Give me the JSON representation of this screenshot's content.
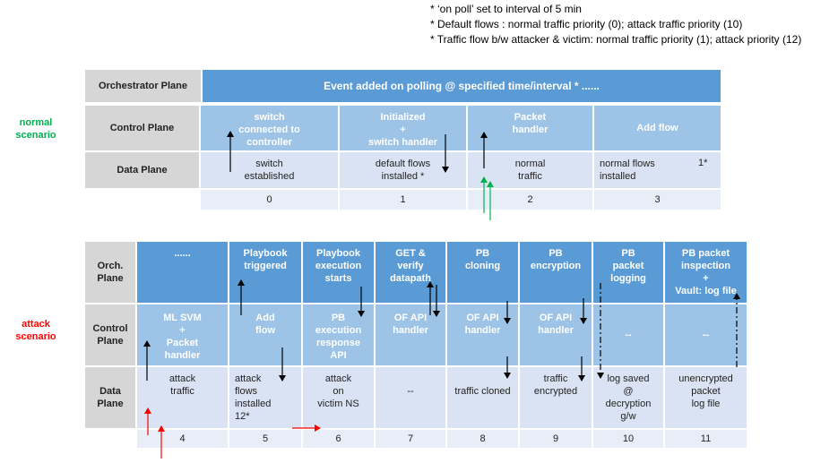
{
  "notes": [
    "* ‘on poll’ set to interval of 5 min",
    "* Default flows : normal traffic priority (0); attack traffic priority (10)",
    "* Traffic flow b/w attacker & victim: normal traffic priority (1); attack priority (12)"
  ],
  "normal": {
    "scenario_label": "normal\nscenario",
    "orchestrator_label": "Orchestrator\nPlane",
    "orchestrator_event": "Event added on polling @ specified time/interval *      ......",
    "control_label": "Control\nPlane",
    "data_label": "Data\nPlane",
    "control": [
      "switch\nconnected to\ncontroller",
      "Initialized\n+\nswitch handler",
      "Packet\nhandler",
      "Add flow"
    ],
    "data": [
      "switch\nestablished",
      "default flows\ninstalled *",
      "normal\ntraffic",
      "normal flows\ninstalled"
    ],
    "data_mark": "1*",
    "steps": [
      "0",
      "1",
      "2",
      "3"
    ]
  },
  "attack": {
    "scenario_label": "attack\nscenario",
    "orch_label": "Orch.\nPlane",
    "control_label": "Control\nPlane",
    "data_label": "Data\nPlane",
    "orch": [
      "......",
      "Playbook\ntriggered",
      "Playbook\nexecution\nstarts",
      "GET &\nverify\ndatapath",
      "PB\ncloning",
      "PB\nencryption",
      "PB\npacket\nlogging",
      "PB packet\ninspection\n+\nVault: log file"
    ],
    "control": [
      "ML SVM\n+\nPacket\nhandler",
      "Add\nflow",
      "PB\nexecution\nresponse\nAPI",
      "OF API\nhandler",
      "OF API\nhandler",
      "OF API\nhandler",
      "--",
      "--"
    ],
    "data": [
      "attack\ntraffic",
      "attack\nflows\ninstalled\n12*",
      "attack\non\nvictim NS",
      "--",
      "traffic cloned",
      "traffic\nencrypted",
      "log saved\n@\ndecryption\ng/w",
      "unencrypted\npacket\nlog file"
    ],
    "steps": [
      "4",
      "5",
      "6",
      "7",
      "8",
      "9",
      "10",
      "11"
    ]
  },
  "colors": {
    "header_gray": "#d6d6d6",
    "dark_blue": "#5b9bd5",
    "mid_blue": "#9dc3e6",
    "light_blue": "#dae3f3",
    "normal_text": "#00b050",
    "attack_text": "#ff0000"
  }
}
